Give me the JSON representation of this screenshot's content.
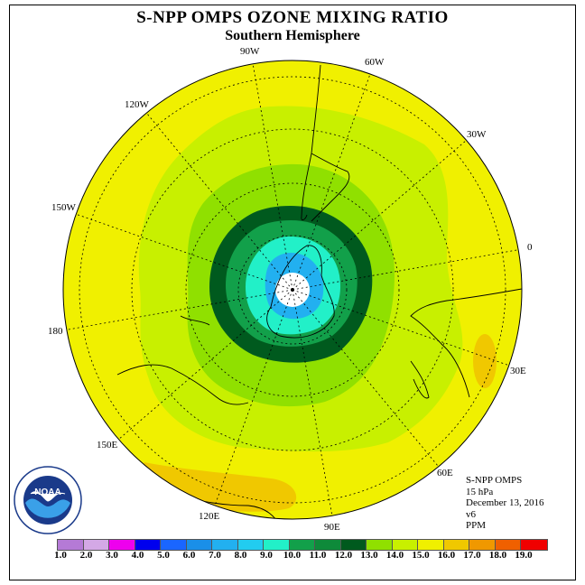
{
  "title": "S-NPP OMPS OZONE MIXING RATIO",
  "subtitle": "Southern Hemisphere",
  "longitude_labels": [
    "90W",
    "60W",
    "120W",
    "30W",
    "150W",
    "0",
    "180",
    "30E",
    "150E",
    "60E",
    "120E",
    "90E"
  ],
  "info": {
    "instrument": "S-NPP OMPS",
    "level": "15 hPa",
    "date": "December 13, 2016",
    "version": "v6",
    "units": "PPM"
  },
  "logo_text": "NOAA",
  "colorbar": {
    "labels": [
      "1.0",
      "2.0",
      "3.0",
      "4.0",
      "5.0",
      "6.0",
      "7.0",
      "8.0",
      "9.0",
      "10.0",
      "11.0",
      "12.0",
      "13.0",
      "14.0",
      "15.0",
      "16.0",
      "17.0",
      "18.0",
      "19.0"
    ],
    "colors": [
      "#b57ad6",
      "#d4a8e6",
      "#ee00ee",
      "#0000ee",
      "#1a66ff",
      "#1a8fe8",
      "#22b0f0",
      "#22ccf0",
      "#22f0c8",
      "#12a04a",
      "#0e8a3a",
      "#005a1e",
      "#90e000",
      "#c8f000",
      "#f0f000",
      "#f0c800",
      "#f09800",
      "#f06000",
      "#f00000"
    ]
  },
  "map_colors": {
    "yellow": "#f0f000",
    "orange_light": "#f0c800",
    "lime": "#c8f000",
    "yellow_green": "#90e000",
    "dark_green": "#005a1e",
    "green": "#12a04a",
    "aqua": "#22f0c8",
    "blue": "#22b0f0",
    "white": "#ffffff"
  }
}
